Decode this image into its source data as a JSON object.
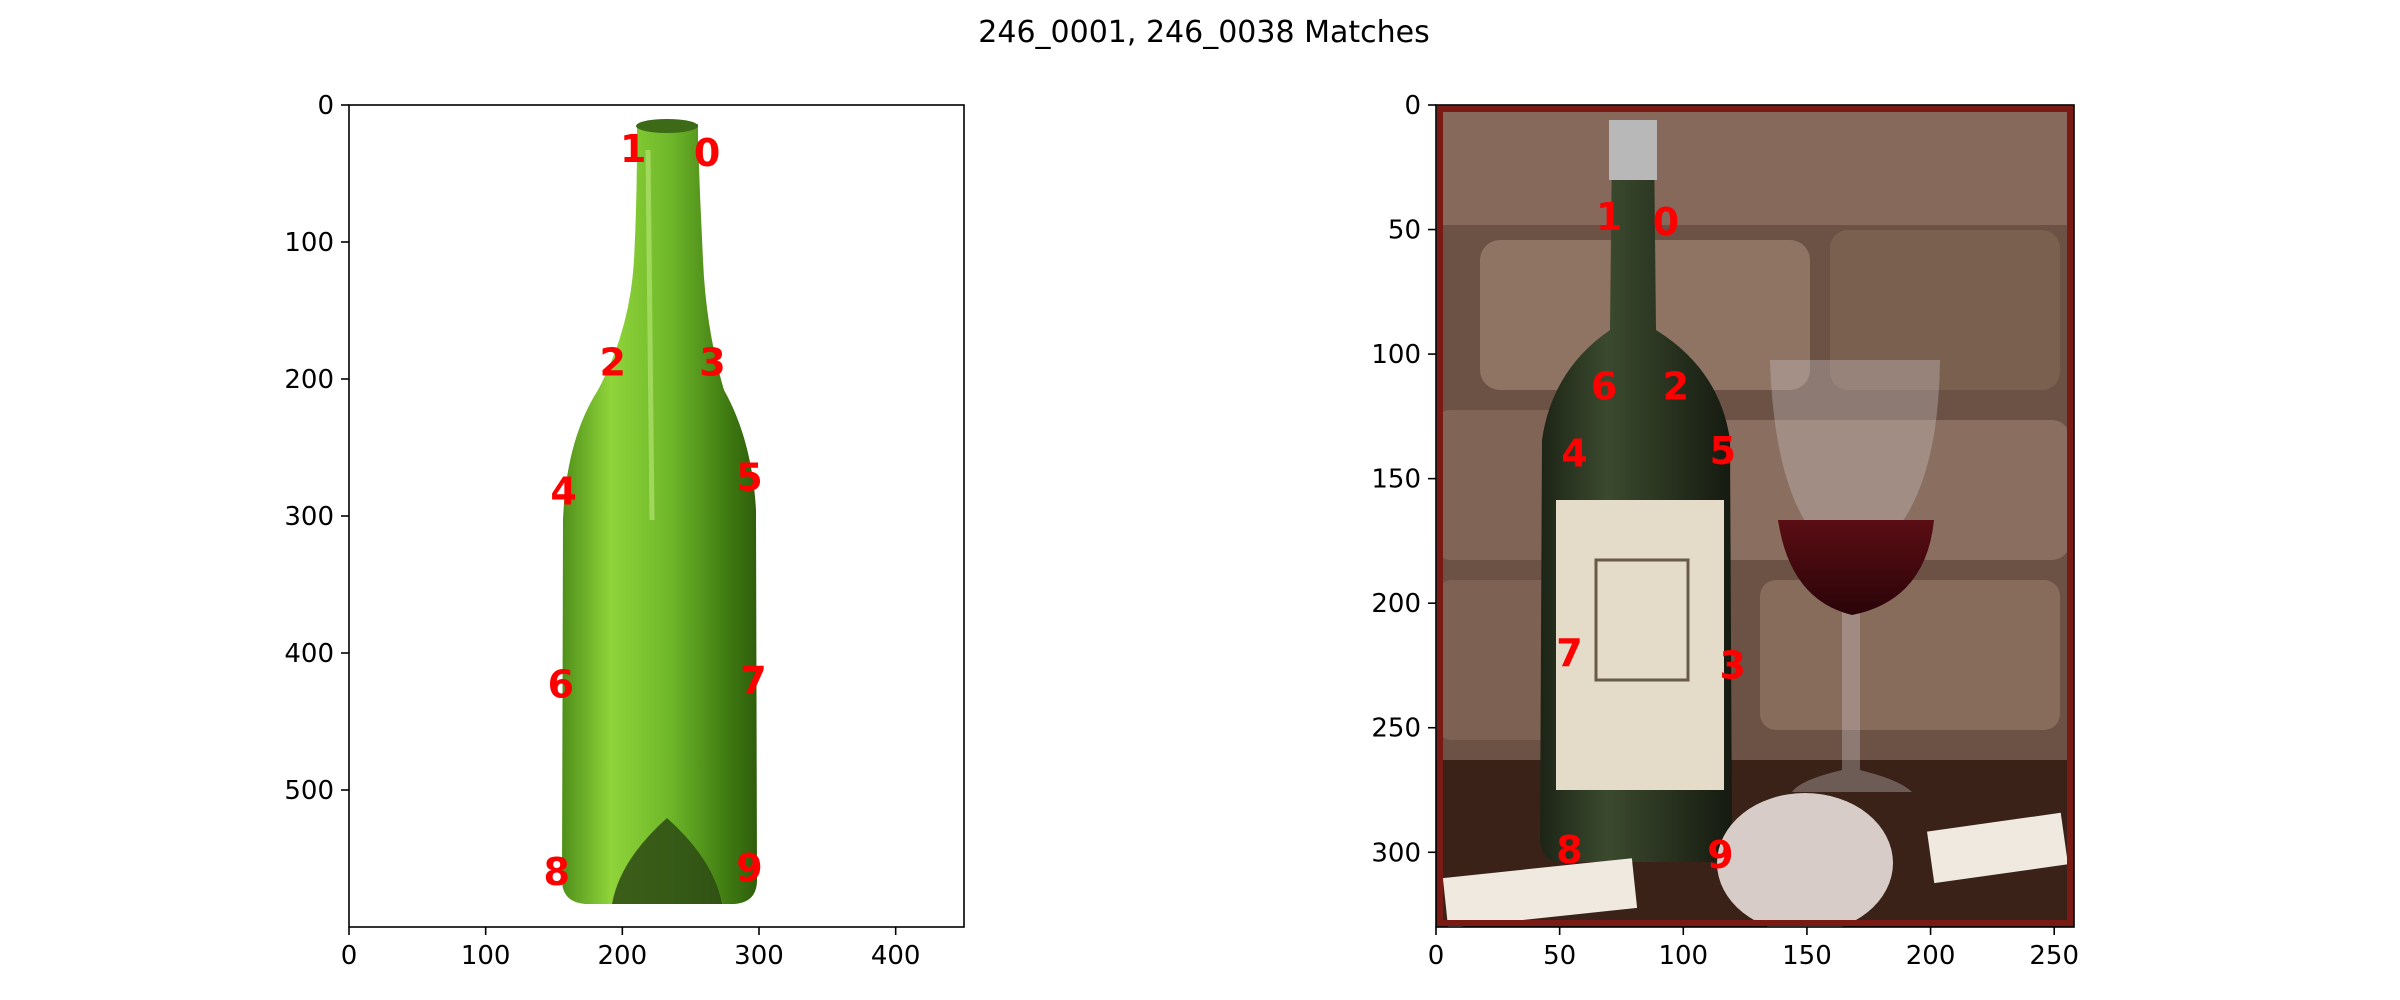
{
  "figure": {
    "title": "246_0001, 246_0038 Matches"
  },
  "colors": {
    "keypoint_label": "#ff0000",
    "axes": "#000000",
    "background": "#ffffff"
  },
  "chart_data": [
    {
      "type": "scatter",
      "subtype": "keypoint-labels-over-image",
      "image": "green empty glass wine bottle on white background",
      "xlim": [
        0,
        450
      ],
      "ylim": [
        600,
        0
      ],
      "x_ticks": [
        0,
        100,
        200,
        300,
        400
      ],
      "y_ticks": [
        0,
        100,
        200,
        300,
        400,
        500
      ],
      "grid": false,
      "keypoints": [
        {
          "label": "0",
          "x": 262,
          "y": 35
        },
        {
          "label": "1",
          "x": 208,
          "y": 32
        },
        {
          "label": "2",
          "x": 193,
          "y": 188
        },
        {
          "label": "3",
          "x": 266,
          "y": 188
        },
        {
          "label": "4",
          "x": 157,
          "y": 282
        },
        {
          "label": "5",
          "x": 293,
          "y": 272
        },
        {
          "label": "6",
          "x": 155,
          "y": 423
        },
        {
          "label": "7",
          "x": 296,
          "y": 420
        },
        {
          "label": "8",
          "x": 152,
          "y": 560
        },
        {
          "label": "9",
          "x": 293,
          "y": 557
        }
      ]
    },
    {
      "type": "scatter",
      "subtype": "keypoint-labels-over-image",
      "image": "wine bottle with label beside a glass of red wine in front of a stone wall",
      "xlim": [
        0,
        258
      ],
      "ylim": [
        330,
        0
      ],
      "x_ticks": [
        0,
        50,
        100,
        150,
        200,
        250
      ],
      "y_ticks": [
        0,
        50,
        100,
        150,
        200,
        250,
        300
      ],
      "grid": false,
      "keypoints": [
        {
          "label": "0",
          "x": 93,
          "y": 47
        },
        {
          "label": "1",
          "x": 70,
          "y": 45
        },
        {
          "label": "2",
          "x": 97,
          "y": 113
        },
        {
          "label": "3",
          "x": 120,
          "y": 225
        },
        {
          "label": "4",
          "x": 56,
          "y": 140
        },
        {
          "label": "5",
          "x": 116,
          "y": 139
        },
        {
          "label": "6",
          "x": 68,
          "y": 113
        },
        {
          "label": "7",
          "x": 54,
          "y": 220
        },
        {
          "label": "8",
          "x": 54,
          "y": 299
        },
        {
          "label": "9",
          "x": 115,
          "y": 301
        }
      ]
    }
  ]
}
